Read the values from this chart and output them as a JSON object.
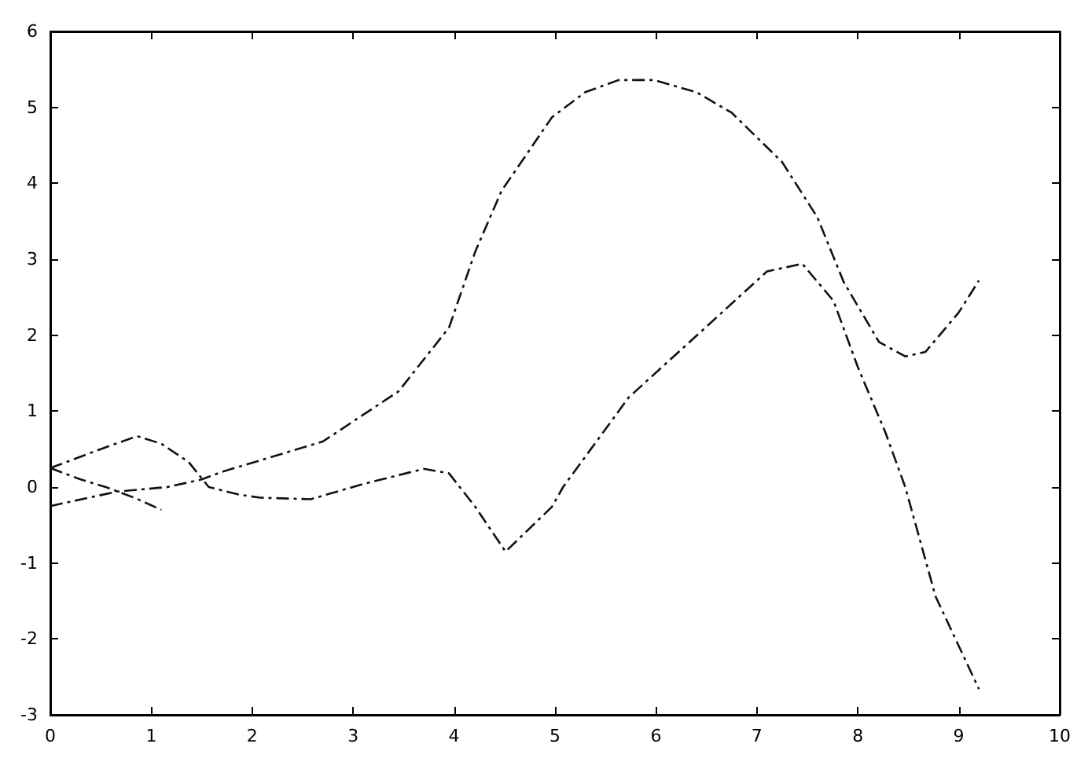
{
  "chart_data": {
    "type": "line",
    "xlim": [
      0,
      10
    ],
    "ylim": [
      -3,
      6
    ],
    "xticks": [
      0,
      1,
      2,
      3,
      4,
      5,
      6,
      7,
      8,
      9,
      10
    ],
    "yticks": [
      -3,
      -2,
      -1,
      0,
      1,
      2,
      3,
      4,
      5,
      6
    ],
    "grid": false,
    "marker": "none",
    "line_style": "dashed",
    "series": [
      {
        "color": "#111111",
        "x": [
          0,
          0.66,
          1.16,
          1.5,
          1.7,
          2.7,
          3.45,
          3.95,
          4.21,
          4.47,
          4.97,
          5.3,
          5.63,
          5.98,
          6.4,
          6.75,
          7.25,
          7.6,
          7.86,
          8.21,
          8.47,
          8.67,
          9.0,
          9.2
        ],
        "values": [
          -0.25,
          -0.06,
          0,
          0.1,
          0.2,
          0.6,
          1.26,
          2.1,
          3.1,
          3.9,
          4.87,
          5.2,
          5.36,
          5.36,
          5.2,
          4.93,
          4.28,
          3.55,
          2.7,
          1.91,
          1.72,
          1.78,
          2.3,
          2.72
        ]
      },
      {
        "color": "#111111",
        "x": [
          0,
          0.5,
          0.86,
          1.1,
          1.37,
          1.57,
          1.87,
          2.08,
          2.58,
          3.1,
          3.7,
          3.95,
          4.21,
          4.51,
          4.97,
          5.08,
          5.73,
          6.49,
          7.1,
          7.45,
          7.76,
          8.0,
          8.27,
          8.47,
          8.77,
          9.2
        ],
        "values": [
          0.25,
          0.5,
          0.67,
          0.57,
          0.33,
          0,
          -0.1,
          -0.14,
          -0.16,
          0.04,
          0.24,
          0.18,
          -0.26,
          -0.85,
          -0.26,
          0,
          1.18,
          2.1,
          2.84,
          2.94,
          2.45,
          1.58,
          0.73,
          0,
          -1.44,
          -2.66
        ]
      },
      {
        "color": "#111111",
        "x": [
          0,
          0.3,
          0.55,
          0.85,
          1.1
        ],
        "values": [
          0.25,
          0.1,
          0,
          -0.15,
          -0.3
        ]
      }
    ]
  }
}
